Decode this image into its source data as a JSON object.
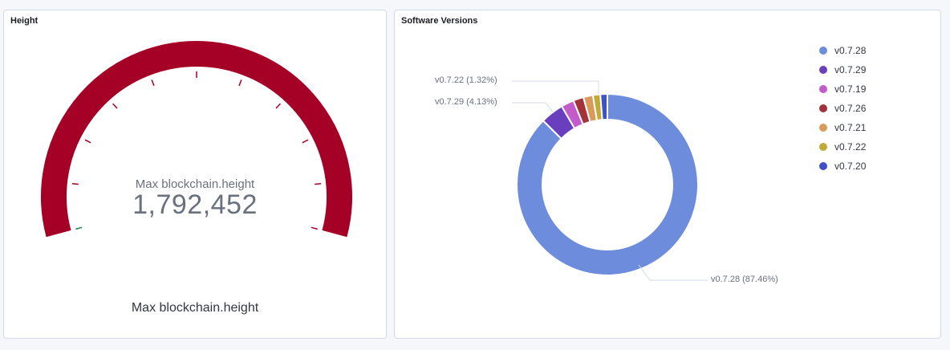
{
  "height_panel": {
    "title": "Height",
    "metric_label": "Max blockchain.height",
    "metric_value": "1,792,452",
    "bottom_label": "Max blockchain.height",
    "gauge_fill_fraction": 1.0,
    "colors": {
      "arc": "#a50026",
      "ticks": "#a50026",
      "start_tick": "#1a7d4f"
    }
  },
  "software_panel": {
    "title": "Software Versions",
    "slices": [
      {
        "label": "v0.7.28",
        "percent": 87.46,
        "color": "#6e8cdc"
      },
      {
        "label": "v0.7.29",
        "percent": 4.13,
        "color": "#6a3fbe"
      },
      {
        "label": "v0.7.19",
        "percent": 2.3,
        "color": "#c45bcb"
      },
      {
        "label": "v0.7.26",
        "percent": 1.84,
        "color": "#a2333b"
      },
      {
        "label": "v0.7.21",
        "percent": 1.7,
        "color": "#d99b5c"
      },
      {
        "label": "v0.7.22",
        "percent": 1.32,
        "color": "#c0ab38"
      },
      {
        "label": "v0.7.20",
        "percent": 1.25,
        "color": "#3f52c8"
      }
    ],
    "callouts": {
      "v0_7_22": "v0.7.22 (1.32%)",
      "v0_7_29": "v0.7.29 (4.13%)",
      "v0_7_28": "v0.7.28 (87.46%)"
    }
  }
}
